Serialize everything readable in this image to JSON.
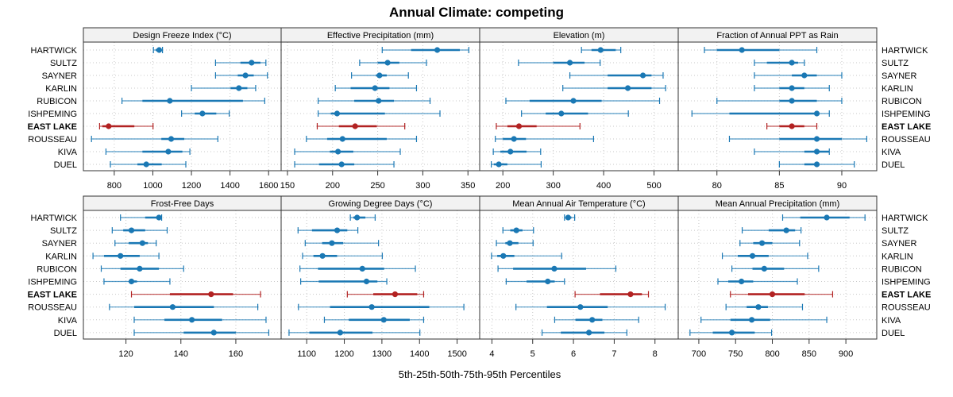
{
  "chart_data": {
    "type": "dotplot-interval",
    "title": "Annual Climate: competing",
    "xlabel": "5th-25th-50th-75th-95th Percentiles",
    "layout": "2 rows x 4 columns",
    "grid": true,
    "highlight_category": "EAST LAKE",
    "colors": {
      "default": "#1a78b4",
      "highlight": "#b22222"
    },
    "categories": [
      "HARTWICK",
      "SULTZ",
      "SAYNER",
      "KARLIN",
      "RUBICON",
      "ISHPEMING",
      "EAST LAKE",
      "ROUSSEAU",
      "KIVA",
      "DUEL"
    ],
    "percentile_order": [
      "p5",
      "p25",
      "p50",
      "p75",
      "p95"
    ],
    "panels": [
      {
        "title": "Design Freeze Index (°C)",
        "xlim": [
          640,
          1665
        ],
        "ticks": [
          800,
          1000,
          1200,
          1400,
          1600
        ],
        "tick_labels": [
          "800",
          "1000",
          "1200",
          "1400",
          "1600"
        ],
        "values": [
          [
            1003,
            1015,
            1033,
            1045,
            1050
          ],
          [
            1325,
            1454,
            1512,
            1558,
            1586
          ],
          [
            1325,
            1440,
            1480,
            1523,
            1594
          ],
          [
            1200,
            1403,
            1446,
            1490,
            1533
          ],
          [
            840,
            946,
            1088,
            1467,
            1580
          ],
          [
            1149,
            1217,
            1257,
            1329,
            1396
          ],
          [
            724,
            738,
            771,
            904,
            1001
          ],
          [
            682,
            1044,
            1095,
            1163,
            1337
          ],
          [
            757,
            946,
            1080,
            1153,
            1192
          ],
          [
            780,
            920,
            966,
            1046,
            1171
          ]
        ]
      },
      {
        "title": "Effective Precipitation (mm)",
        "xlim": [
          143,
          363
        ],
        "ticks": [
          150,
          200,
          250,
          300,
          350
        ],
        "tick_labels": [
          "150",
          "200",
          "250",
          "300",
          "350"
        ],
        "values": [
          [
            255,
            287,
            316,
            341,
            351
          ],
          [
            230,
            250,
            261,
            274,
            304
          ],
          [
            221,
            248,
            252,
            260,
            284
          ],
          [
            203,
            220,
            247,
            263,
            293
          ],
          [
            184,
            224,
            251,
            268,
            308
          ],
          [
            184,
            198,
            205,
            258,
            319
          ],
          [
            183,
            207,
            225,
            249,
            280
          ],
          [
            171,
            194,
            211,
            260,
            293
          ],
          [
            158,
            197,
            206,
            223,
            275
          ],
          [
            158,
            185,
            210,
            224,
            268
          ]
        ]
      },
      {
        "title": "Elevation (m)",
        "xlim": [
          154,
          548
        ],
        "ticks": [
          200,
          300,
          400,
          500
        ],
        "tick_labels": [
          "200",
          "300",
          "400",
          "500"
        ],
        "values": [
          [
            356,
            376,
            394,
            424,
            434
          ],
          [
            231,
            300,
            333,
            362,
            393
          ],
          [
            333,
            408,
            478,
            495,
            518
          ],
          [
            319,
            408,
            448,
            495,
            523
          ],
          [
            206,
            253,
            340,
            396,
            511
          ],
          [
            237,
            285,
            316,
            369,
            449
          ],
          [
            187,
            209,
            232,
            267,
            353
          ],
          [
            185,
            200,
            222,
            246,
            380
          ],
          [
            181,
            195,
            215,
            247,
            275
          ],
          [
            177,
            182,
            192,
            209,
            276
          ]
        ]
      },
      {
        "title": "Fraction of Annual PPT as Rain",
        "xlim": [
          76.9,
          92.8
        ],
        "ticks": [
          80,
          85,
          90
        ],
        "tick_labels": [
          "80",
          "85",
          "90"
        ],
        "values": [
          [
            79,
            80,
            82,
            85,
            88
          ],
          [
            83,
            84,
            86,
            86.5,
            87
          ],
          [
            83,
            86,
            87,
            88,
            90
          ],
          [
            83,
            85,
            86,
            87,
            89
          ],
          [
            80,
            85,
            86,
            88,
            90
          ],
          [
            78,
            81,
            88,
            88,
            89
          ],
          [
            84,
            85,
            86,
            87,
            88
          ],
          [
            81,
            85,
            88,
            90,
            92
          ],
          [
            83,
            87,
            88,
            89,
            89
          ],
          [
            85,
            87,
            88,
            88,
            91
          ]
        ]
      },
      {
        "title": "Frost-Free Days",
        "xlim": [
          104.5,
          176.5
        ],
        "ticks": [
          120,
          140,
          160
        ],
        "tick_labels": [
          "120",
          "140",
          "160"
        ],
        "values": [
          [
            118,
            127,
            132,
            133,
            133
          ],
          [
            115,
            119,
            122,
            127,
            135
          ],
          [
            116,
            121,
            126,
            128,
            131
          ],
          [
            108,
            112,
            118,
            125,
            132
          ],
          [
            111,
            118,
            125,
            132,
            141
          ],
          [
            112,
            121,
            122,
            124,
            136
          ],
          [
            122,
            136,
            151,
            159,
            169
          ],
          [
            114,
            123,
            137,
            152,
            168
          ],
          [
            123,
            134,
            144,
            155,
            171
          ],
          [
            123,
            141,
            152,
            160,
            172
          ]
        ]
      },
      {
        "title": "Growing Degree Days (°C)",
        "xlim": [
          1032,
          1560
        ],
        "ticks": [
          1100,
          1200,
          1300,
          1400,
          1500
        ],
        "tick_labels": [
          "1100",
          "1200",
          "1300",
          "1400",
          "1500"
        ],
        "values": [
          [
            1216,
            1224,
            1234,
            1256,
            1282
          ],
          [
            1077,
            1114,
            1181,
            1208,
            1236
          ],
          [
            1096,
            1141,
            1167,
            1197,
            1291
          ],
          [
            1089,
            1118,
            1142,
            1181,
            1301
          ],
          [
            1082,
            1130,
            1248,
            1306,
            1389
          ],
          [
            1084,
            1132,
            1259,
            1288,
            1313
          ],
          [
            1208,
            1277,
            1335,
            1394,
            1411
          ],
          [
            1078,
            1162,
            1273,
            1426,
            1518
          ],
          [
            1147,
            1212,
            1305,
            1374,
            1411
          ],
          [
            1053,
            1107,
            1189,
            1275,
            1401
          ]
        ]
      },
      {
        "title": "Mean Annual Air Temperature (°C)",
        "xlim": [
          3.7,
          8.57
        ],
        "ticks": [
          4,
          5,
          6,
          7,
          8
        ],
        "tick_labels": [
          "4",
          "5",
          "6",
          "7",
          "8"
        ],
        "values": [
          [
            5.78,
            5.82,
            5.87,
            5.95,
            6.03
          ],
          [
            4.27,
            4.45,
            4.6,
            4.75,
            5.02
          ],
          [
            4.11,
            4.33,
            4.44,
            4.65,
            5.01
          ],
          [
            3.99,
            4.13,
            4.28,
            4.55,
            5.71
          ],
          [
            4.15,
            4.52,
            5.53,
            6.31,
            7.04
          ],
          [
            4.35,
            4.85,
            5.37,
            5.54,
            5.78
          ],
          [
            6.04,
            6.65,
            7.4,
            7.68,
            7.84
          ],
          [
            4.59,
            5.35,
            6.17,
            6.84,
            8.25
          ],
          [
            5.54,
            6.05,
            6.46,
            6.71,
            7.6
          ],
          [
            5.23,
            5.69,
            6.38,
            6.76,
            7.31
          ]
        ]
      },
      {
        "title": "Mean Annual Precipitation (mm)",
        "xlim": [
          672,
          942
        ],
        "ticks": [
          700,
          750,
          800,
          850,
          900
        ],
        "tick_labels": [
          "700",
          "750",
          "800",
          "850",
          "900"
        ],
        "values": [
          [
            814,
            838,
            874,
            905,
            926
          ],
          [
            759,
            795,
            819,
            831,
            839
          ],
          [
            756,
            774,
            786,
            800,
            837
          ],
          [
            732,
            753,
            773,
            795,
            848
          ],
          [
            745,
            773,
            789,
            816,
            863
          ],
          [
            726,
            740,
            758,
            774,
            834
          ],
          [
            743,
            767,
            800,
            844,
            882
          ],
          [
            737,
            765,
            781,
            794,
            841
          ],
          [
            703,
            743,
            772,
            797,
            874
          ],
          [
            688,
            719,
            745,
            776,
            799
          ]
        ]
      }
    ]
  }
}
